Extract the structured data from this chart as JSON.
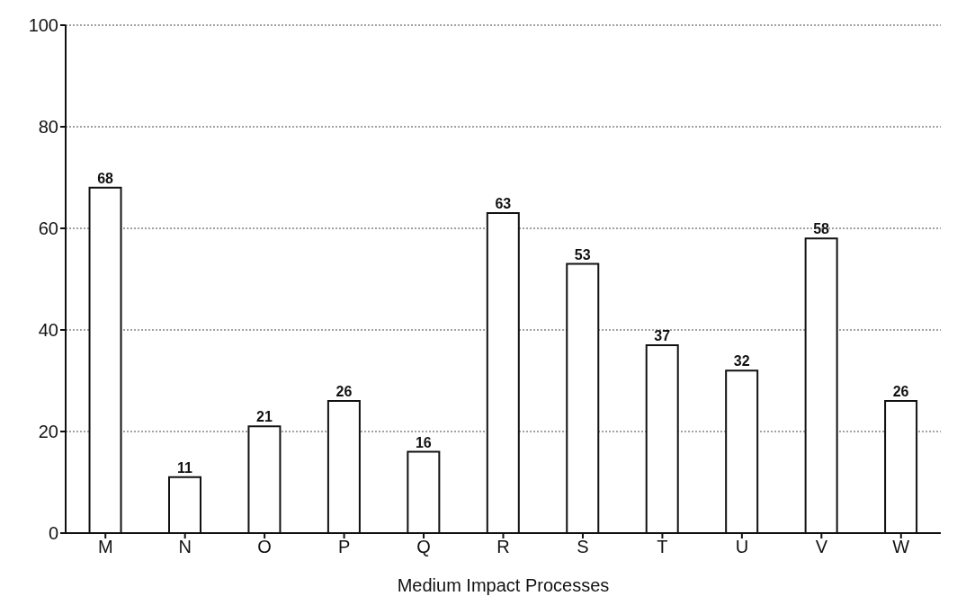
{
  "chart_data": {
    "type": "bar",
    "xlabel": "Medium Impact Processes",
    "categories": [
      "M",
      "N",
      "O",
      "P",
      "Q",
      "R",
      "S",
      "T",
      "U",
      "V",
      "W"
    ],
    "values": [
      68,
      11,
      21,
      26,
      16,
      63,
      53,
      37,
      32,
      58,
      26
    ],
    "color": "#ffffff",
    "ylim": [
      0,
      100
    ],
    "yticks": [
      0,
      20,
      40,
      60,
      80,
      100
    ],
    "grid": "y",
    "data_labels": true
  }
}
